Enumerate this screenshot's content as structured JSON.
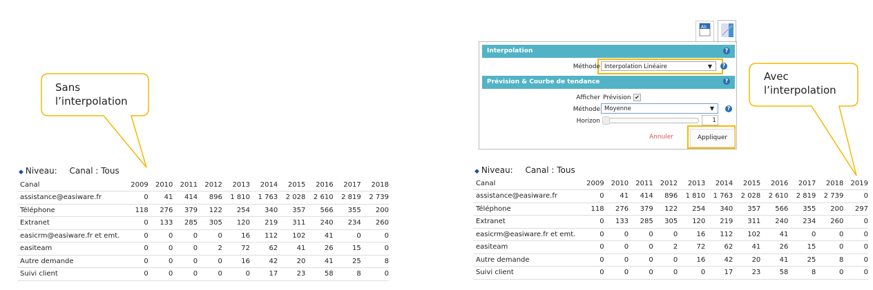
{
  "left": {
    "callout": {
      "line1": "Sans",
      "line2": "l’interpolation"
    },
    "niveau_label": "Niveau:",
    "niveau_value": "Canal : Tous",
    "table": {
      "headers": [
        "Canal",
        "2009",
        "2010",
        "2011",
        "2012",
        "2013",
        "2014",
        "2015",
        "2016",
        "2017",
        "2018"
      ],
      "rows": [
        [
          "assistance@easiware.fr",
          "0",
          "41",
          "414",
          "896",
          "1 810",
          "1 763",
          "2 028",
          "2 610",
          "2 819",
          "2 739"
        ],
        [
          "Téléphone",
          "118",
          "276",
          "379",
          "122",
          "254",
          "340",
          "357",
          "566",
          "355",
          "200"
        ],
        [
          "Extranet",
          "0",
          "133",
          "285",
          "305",
          "120",
          "219",
          "311",
          "240",
          "234",
          "260"
        ],
        [
          "easicrm@easiware.fr et emt.",
          "0",
          "0",
          "0",
          "0",
          "16",
          "112",
          "102",
          "41",
          "0",
          "0"
        ],
        [
          "easiteam",
          "0",
          "0",
          "0",
          "2",
          "72",
          "62",
          "41",
          "26",
          "15",
          "0"
        ],
        [
          "Autre demande",
          "0",
          "0",
          "0",
          "0",
          "16",
          "42",
          "20",
          "41",
          "25",
          "8"
        ],
        [
          "Suivi client",
          "0",
          "0",
          "0",
          "0",
          "0",
          "17",
          "23",
          "58",
          "8",
          "0"
        ]
      ]
    }
  },
  "right": {
    "callout": {
      "line1": "Avec",
      "line2": "l’interpolation"
    },
    "niveau_label": "Niveau:",
    "niveau_value": "Canal : Tous",
    "panel": {
      "tabs": [
        {
          "icon": "text-label-icon",
          "label": "Ab"
        },
        {
          "icon": "trend-chart-icon"
        }
      ],
      "interpolation_title": "Interpolation",
      "methode_label": "Méthode",
      "methode_value": "Interpolation Linéaire",
      "prevision_title": "Prévision & Courbe de tendance",
      "afficher_label": "Afficher",
      "prevision_label": "Prévision",
      "prevision_checked": true,
      "methode2_label": "Méthode",
      "methode2_value": "Moyenne",
      "horizon_label": "Horizon",
      "horizon_value": "1",
      "cancel_label": "Annuler",
      "apply_label": "Appliquer",
      "help": "?"
    },
    "table": {
      "headers": [
        "Canal",
        "2009",
        "2010",
        "2011",
        "2012",
        "2013",
        "2014",
        "2015",
        "2016",
        "2017",
        "2018",
        "2019"
      ],
      "rows": [
        [
          "assistance@easiware.fr",
          "0",
          "41",
          "414",
          "896",
          "1 810",
          "1 763",
          "2 028",
          "2 610",
          "2 819",
          "2 739",
          "0"
        ],
        [
          "Téléphone",
          "118",
          "276",
          "379",
          "122",
          "254",
          "340",
          "357",
          "566",
          "355",
          "200",
          "297"
        ],
        [
          "Extranet",
          "0",
          "133",
          "285",
          "305",
          "120",
          "219",
          "311",
          "240",
          "234",
          "260",
          "0"
        ],
        [
          "easicrm@easiware.fr et emt.",
          "0",
          "0",
          "0",
          "0",
          "16",
          "112",
          "102",
          "41",
          "0",
          "0",
          "0"
        ],
        [
          "easiteam",
          "0",
          "0",
          "0",
          "2",
          "72",
          "62",
          "41",
          "26",
          "15",
          "0",
          "0"
        ],
        [
          "Autre demande",
          "0",
          "0",
          "0",
          "0",
          "16",
          "42",
          "20",
          "41",
          "25",
          "8",
          "0"
        ],
        [
          "Suivi client",
          "0",
          "0",
          "0",
          "0",
          "0",
          "17",
          "23",
          "58",
          "8",
          "0",
          "0"
        ]
      ]
    }
  },
  "colors": {
    "callout_border": "#f5b800",
    "section_header": "#53b3c6",
    "cancel": "#e05050",
    "bullet": "#1f4fa0"
  }
}
